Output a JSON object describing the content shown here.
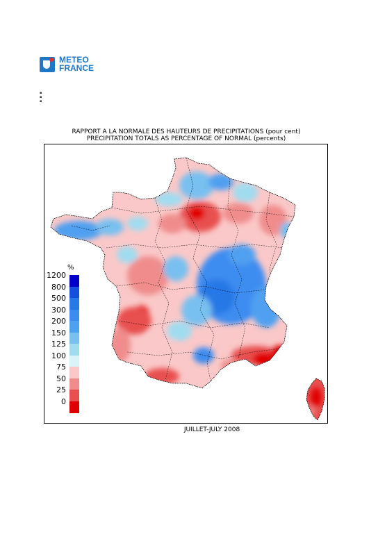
{
  "logo": {
    "line1": "METEO",
    "line2": "FRANCE"
  },
  "titles": {
    "fr": "RAPPORT A LA NORMALE DES HAUTEURS DE PRECIPITATIONS (pour cent)",
    "en": "PRECIPITATION TOTALS AS PERCENTAGE OF NORMAL (percents)"
  },
  "legend": {
    "unit": "%",
    "classes": [
      {
        "label": "1200",
        "color": "#0000c8"
      },
      {
        "label": "800",
        "color": "#1450dc"
      },
      {
        "label": "500",
        "color": "#2878e6"
      },
      {
        "label": "300",
        "color": "#3c8cf0"
      },
      {
        "label": "200",
        "color": "#50a0f0"
      },
      {
        "label": "150",
        "color": "#78c0f0"
      },
      {
        "label": "125",
        "color": "#a0dcf0"
      },
      {
        "label": "100",
        "color": "#d8f4f8"
      },
      {
        "label": "75",
        "color": "#fac8c8"
      },
      {
        "label": "50",
        "color": "#f08c8c"
      },
      {
        "label": "25",
        "color": "#e85050"
      },
      {
        "label": "0",
        "color": "#e00000"
      }
    ]
  },
  "period": "JUILLET-JULY 2008"
}
